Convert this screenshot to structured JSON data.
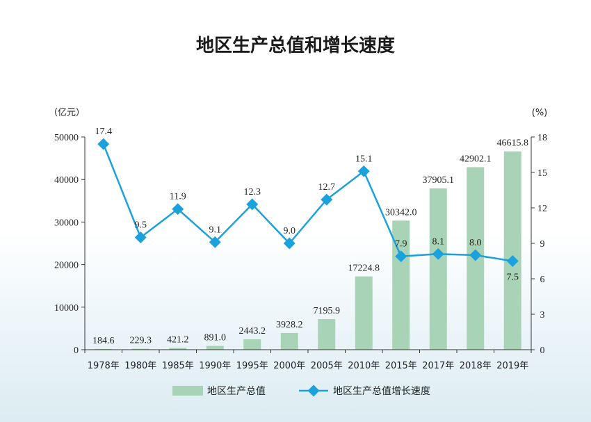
{
  "chart_data": {
    "type": "bar",
    "title": "地区生产总值和增长速度",
    "ylabel_left": "（亿元）",
    "ylabel_right": "(%)",
    "categories": [
      "1978年",
      "1980年",
      "1985年",
      "1990年",
      "1995年",
      "2000年",
      "2005年",
      "2010年",
      "2015年",
      "2017年",
      "2018年",
      "2019年"
    ],
    "ylim_left": [
      0,
      50000
    ],
    "yticks_left": [
      "0",
      "10000",
      "20000",
      "30000",
      "40000",
      "50000"
    ],
    "ylim_right": [
      0,
      18
    ],
    "yticks_right": [
      "0",
      "3",
      "6",
      "9",
      "12",
      "15",
      "18"
    ],
    "series": [
      {
        "name": "地区生产总值",
        "kind": "bar",
        "axis": "left",
        "color": "#a9d3b6",
        "values": [
          184.6,
          229.3,
          421.2,
          891.0,
          2443.2,
          3928.2,
          7195.9,
          17224.8,
          30342.0,
          37905.1,
          42902.1,
          46615.8
        ],
        "labels": [
          "184.6",
          "229.3",
          "421.2",
          "891.0",
          "2443.2",
          "3928.2",
          "7195.9",
          "17224.8",
          "30342.0",
          "37905.1",
          "42902.1",
          "46615.8"
        ]
      },
      {
        "name": "地区生产总值增长速度",
        "kind": "line",
        "axis": "right",
        "color": "#1ba1db",
        "values": [
          17.4,
          9.5,
          11.9,
          9.1,
          12.3,
          9.0,
          12.7,
          15.1,
          7.9,
          8.1,
          8.0,
          7.5
        ],
        "labels": [
          "17.4",
          "9.5",
          "11.9",
          "9.1",
          "12.3",
          "9.0",
          "12.7",
          "15.1",
          "7.9",
          "8.1",
          "8.0",
          "7.5"
        ]
      }
    ],
    "grid": false,
    "legend": "bottom"
  }
}
